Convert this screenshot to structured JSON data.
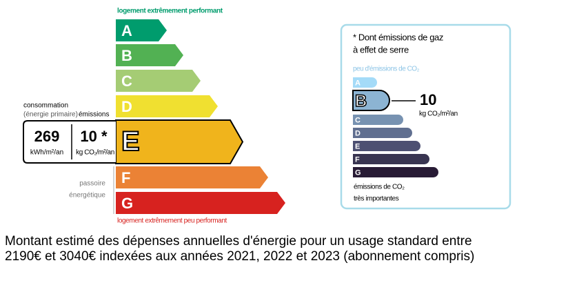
{
  "energy": {
    "top_label": "logement extrêmement performant",
    "bottom_label": "logement extrêmement peu performant",
    "classes": [
      "A",
      "B",
      "C",
      "D",
      "E",
      "F",
      "G"
    ],
    "colors": [
      "#009c6d",
      "#52b153",
      "#a5cc74",
      "#f0e030",
      "#f0b41c",
      "#eb8235",
      "#d7221f"
    ],
    "current": "E",
    "consumption_label": "consommation",
    "consumption_sub": "(énergie primaire)",
    "emissions_label": "émissions",
    "consumption_value": 269,
    "consumption_unit": "kWh/m²/an",
    "emissions_value": "10 *",
    "emissions_unit": "kg CO₂/m²/an",
    "passoire": [
      "passoire",
      "énergétique"
    ]
  },
  "ghg": {
    "note": [
      "* Dont émissions de gaz",
      "à effet de serre"
    ],
    "top_label": "peu d'émissions de CO₂",
    "classes": [
      "A",
      "B",
      "C",
      "D",
      "E",
      "F",
      "G"
    ],
    "colors": [
      "#a4dbf8",
      "#8cb4d3",
      "#7792b1",
      "#606f90",
      "#4d5072",
      "#393551",
      "#281b35"
    ],
    "current": "B",
    "value": 10,
    "unit": "kg CO₂/m²/an",
    "bottom_label": [
      "émissions de CO₂",
      "très importantes"
    ]
  },
  "footer": [
    "Montant estimé des dépenses annuelles d'énergie pour un usage standard entre",
    "2190€ et 3040€ indexées aux années 2021, 2022 et 2023 (abonnement compris)"
  ]
}
